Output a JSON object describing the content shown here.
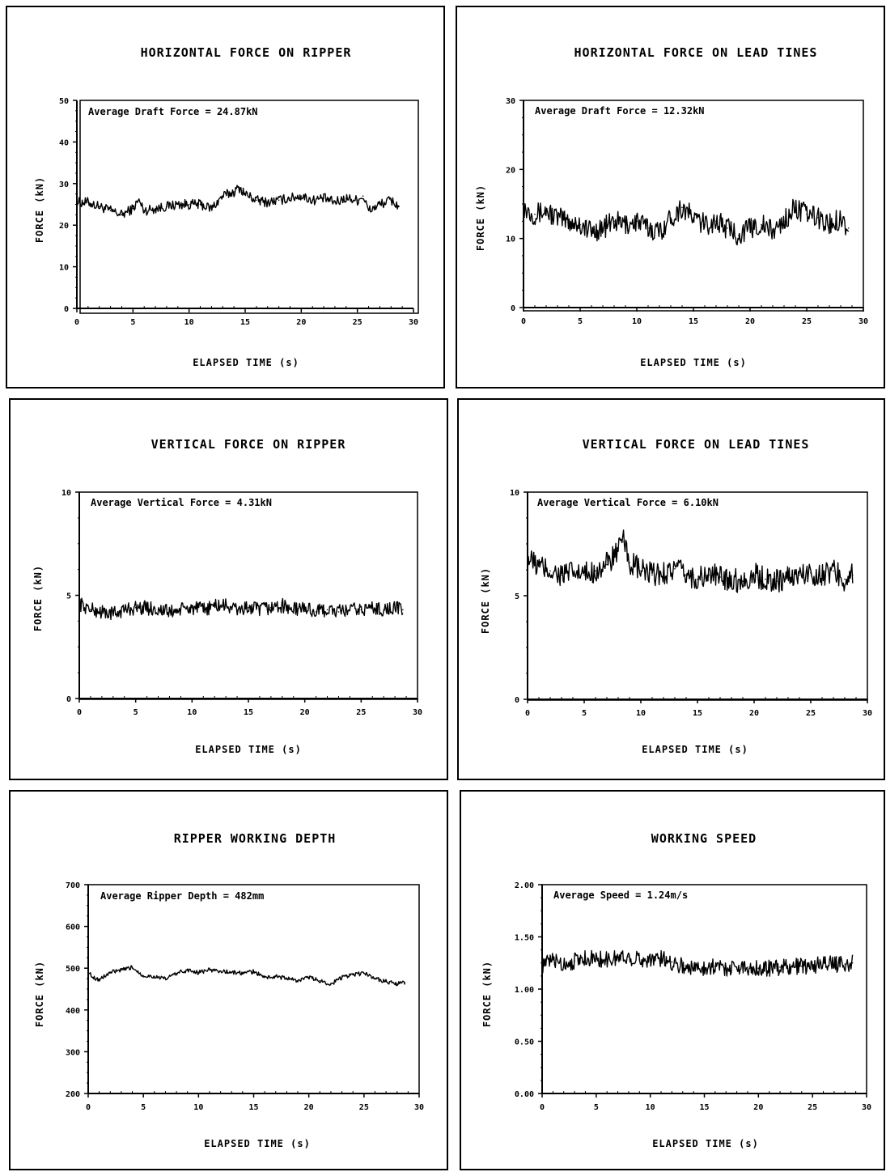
{
  "chart_data": [
    {
      "type": "line",
      "title": "HORIZONTAL FORCE ON RIPPER",
      "xlabel": "ELAPSED TIME (s)",
      "ylabel": "FORCE (kN)",
      "annotation": "Average Draft Force = 24.87kN",
      "xlim": [
        0,
        30
      ],
      "ylim": [
        0,
        50
      ],
      "xticks": [
        0,
        5,
        10,
        15,
        20,
        25,
        30
      ],
      "xtick_labels": [
        "0",
        "5",
        "10",
        "15",
        "20",
        "25",
        "30"
      ],
      "yticks": [
        0,
        10,
        20,
        30,
        40,
        50
      ],
      "ytick_labels": [
        "0",
        "10",
        "20",
        "30",
        "40",
        "50"
      ],
      "series": [
        {
          "x": [
            0,
            1,
            2,
            3,
            4,
            5,
            5.5,
            6,
            7,
            8,
            9,
            10,
            11,
            12,
            13,
            14,
            14.5,
            15,
            16,
            17,
            18,
            19,
            20,
            21,
            22,
            23,
            24,
            25,
            25.5,
            26,
            27,
            28,
            28.7
          ],
          "y": [
            25.5,
            25.5,
            24.5,
            23.5,
            22.5,
            24,
            26,
            23.5,
            24,
            24.5,
            25,
            25,
            25,
            24,
            27,
            28,
            29,
            27.5,
            26,
            25.5,
            26,
            26.5,
            27,
            26,
            26.5,
            25.5,
            26.5,
            26,
            27,
            23.5,
            25,
            26,
            24.5
          ]
        }
      ]
    },
    {
      "type": "line",
      "title": "HORIZONTAL FORCE ON LEAD TINES",
      "xlabel": "ELAPSED TIME (s)",
      "ylabel": "FORCE (kN)",
      "annotation": "Average Draft Force = 12.32kN",
      "xlim": [
        0,
        30
      ],
      "ylim": [
        0,
        30
      ],
      "xticks": [
        0,
        5,
        10,
        15,
        20,
        25,
        30
      ],
      "xtick_labels": [
        "0",
        "5",
        "10",
        "15",
        "20",
        "25",
        "30"
      ],
      "yticks": [
        0,
        10,
        20,
        30
      ],
      "ytick_labels": [
        "0",
        "10",
        "20",
        "30"
      ],
      "series": [
        {
          "x": [
            0,
            1,
            2,
            3,
            4,
            5,
            6,
            7,
            8,
            9,
            10,
            11,
            12,
            13,
            14,
            15,
            16,
            17,
            18,
            19,
            20,
            21,
            22,
            23,
            24,
            25,
            26,
            27,
            28,
            28.7
          ],
          "y": [
            14.5,
            13.5,
            14,
            13,
            12.5,
            12,
            11,
            11.5,
            12.5,
            12,
            12.5,
            11.5,
            11,
            13,
            14.5,
            13,
            12,
            12.5,
            11.5,
            10.5,
            11.5,
            12,
            11,
            12.5,
            14.5,
            13.5,
            13,
            12,
            13,
            11.5
          ]
        }
      ]
    },
    {
      "type": "line",
      "title": "VERTICAL FORCE ON RIPPER",
      "xlabel": "ELAPSED TIME (s)",
      "ylabel": "FORCE (kN)",
      "annotation": "Average Vertical Force = 4.31kN",
      "xlim": [
        0,
        30
      ],
      "ylim": [
        0,
        10
      ],
      "xticks": [
        0,
        5,
        10,
        15,
        20,
        25,
        30
      ],
      "xtick_labels": [
        "0",
        "5",
        "10",
        "15",
        "20",
        "25",
        "30"
      ],
      "yticks": [
        0,
        5,
        10
      ],
      "ytick_labels": [
        "0",
        "5",
        "10"
      ],
      "series": [
        {
          "x": [
            0,
            1,
            2,
            3,
            4,
            5,
            6,
            7,
            8,
            9,
            10,
            11,
            12,
            13,
            14,
            15,
            16,
            17,
            18,
            19,
            20,
            21,
            22,
            23,
            24,
            25,
            26,
            27,
            28,
            28.7
          ],
          "y": [
            4.6,
            4.3,
            4.2,
            4.1,
            4.3,
            4.4,
            4.4,
            4.3,
            4.2,
            4.3,
            4.4,
            4.3,
            4.5,
            4.5,
            4.3,
            4.4,
            4.3,
            4.4,
            4.5,
            4.3,
            4.4,
            4.2,
            4.3,
            4.2,
            4.3,
            4.3,
            4.4,
            4.3,
            4.4,
            4.3
          ]
        }
      ]
    },
    {
      "type": "line",
      "title": "VERTICAL FORCE ON LEAD TINES",
      "xlabel": "ELAPSED TIME (s)",
      "ylabel": "FORCE (kN)",
      "annotation": "Average Vertical Force = 6.10kN",
      "xlim": [
        0,
        30
      ],
      "ylim": [
        0,
        10
      ],
      "xticks": [
        0,
        5,
        10,
        15,
        20,
        25,
        30
      ],
      "xtick_labels": [
        "0",
        "5",
        "10",
        "15",
        "20",
        "25",
        "30"
      ],
      "yticks": [
        0,
        5,
        10
      ],
      "ytick_labels": [
        "0",
        "5",
        "10"
      ],
      "series": [
        {
          "x": [
            0,
            1,
            2,
            3,
            4,
            5,
            6,
            7,
            8,
            8.5,
            9,
            10,
            11,
            12,
            13,
            14,
            15,
            16,
            17,
            18,
            19,
            20,
            21,
            22,
            23,
            24,
            25,
            26,
            27,
            28,
            28.7
          ],
          "y": [
            6.8,
            6.4,
            6.2,
            6.0,
            6.1,
            6.0,
            6.2,
            6.5,
            7.2,
            7.6,
            6.6,
            6.2,
            6.0,
            6.1,
            6.3,
            6.0,
            5.8,
            6.0,
            5.9,
            5.8,
            5.7,
            6.0,
            5.8,
            5.7,
            5.9,
            6.0,
            6.1,
            6.0,
            6.2,
            5.8,
            6.0
          ]
        }
      ]
    },
    {
      "type": "line",
      "title": "RIPPER WORKING DEPTH",
      "xlabel": "ELAPSED TIME (s)",
      "ylabel": "FORCE (kN)",
      "annotation": "Average Ripper Depth = 482mm",
      "xlim": [
        0,
        30
      ],
      "ylim": [
        200,
        700
      ],
      "xticks": [
        0,
        5,
        10,
        15,
        20,
        25,
        30
      ],
      "xtick_labels": [
        "0",
        "5",
        "10",
        "15",
        "20",
        "25",
        "30"
      ],
      "yticks": [
        200,
        300,
        400,
        500,
        600,
        700
      ],
      "ytick_labels": [
        "200",
        "300",
        "400",
        "500",
        "600",
        "700"
      ],
      "series": [
        {
          "x": [
            0,
            0.5,
            1,
            2,
            3,
            4,
            5,
            6,
            7,
            8,
            9,
            10,
            11,
            12,
            13,
            14,
            15,
            16,
            17,
            18,
            19,
            20,
            21,
            22,
            23,
            24,
            25,
            26,
            27,
            28,
            28.7
          ],
          "y": [
            490,
            478,
            472,
            490,
            495,
            502,
            482,
            480,
            474,
            488,
            495,
            490,
            496,
            493,
            490,
            488,
            492,
            478,
            480,
            476,
            470,
            478,
            470,
            462,
            478,
            484,
            488,
            476,
            468,
            462,
            465
          ]
        }
      ]
    },
    {
      "type": "line",
      "title": "WORKING SPEED",
      "xlabel": "ELAPSED TIME (s)",
      "ylabel": "FORCE (kN)",
      "annotation": "Average Speed = 1.24m/s",
      "xlim": [
        0,
        30
      ],
      "ylim": [
        0,
        2
      ],
      "xticks": [
        0,
        5,
        10,
        15,
        20,
        25,
        30
      ],
      "xtick_labels": [
        "0",
        "5",
        "10",
        "15",
        "20",
        "25",
        "30"
      ],
      "yticks": [
        0,
        0.5,
        1,
        1.5,
        2
      ],
      "ytick_labels": [
        "0.00",
        "0.50",
        "1.00",
        "1.50",
        "2.00"
      ],
      "series": [
        {
          "x": [
            0,
            1,
            2,
            3,
            4,
            5,
            6,
            7,
            8,
            9,
            10,
            11,
            12,
            13,
            14,
            15,
            16,
            17,
            18,
            19,
            20,
            21,
            22,
            23,
            24,
            25,
            26,
            27,
            28,
            28.7
          ],
          "y": [
            1.22,
            1.28,
            1.24,
            1.27,
            1.3,
            1.29,
            1.28,
            1.3,
            1.31,
            1.28,
            1.29,
            1.29,
            1.26,
            1.22,
            1.2,
            1.21,
            1.22,
            1.2,
            1.21,
            1.21,
            1.2,
            1.2,
            1.21,
            1.21,
            1.22,
            1.22,
            1.25,
            1.24,
            1.24,
            1.25
          ]
        }
      ]
    }
  ]
}
